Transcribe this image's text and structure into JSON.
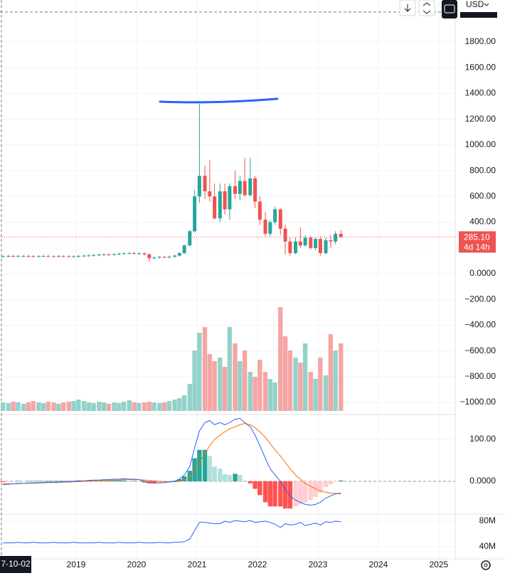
{
  "chart_data": {
    "type": "candlestick",
    "currency": "USD",
    "crosshair_date": "7-10-02",
    "last_price": {
      "value": 285.1,
      "label": "285.10"
    },
    "countdown": "4d 14h",
    "colors": {
      "up": "#26a69a",
      "down": "#ef5350",
      "volume_up": "#93d2ca",
      "volume_down": "#f5a6a4"
    },
    "xlim": [
      2017.741,
      2025.271
    ],
    "xticks": [
      2019,
      2020,
      2021,
      2022,
      2023,
      2024,
      2025
    ],
    "ylim": [
      2126,
      -1077
    ],
    "yticks": [
      {
        "value": 1800,
        "label": "1800.00"
      },
      {
        "value": 1600,
        "label": "1600.00"
      },
      {
        "value": 1400,
        "label": "1400.00"
      },
      {
        "value": 1200,
        "label": "1200.00"
      },
      {
        "value": 1000,
        "label": "1000.00"
      },
      {
        "value": 800,
        "label": "800.00"
      },
      {
        "value": 600,
        "label": "600.00"
      },
      {
        "value": 400,
        "label": "400.00"
      },
      {
        "value": 200,
        "label": "200.00"
      },
      {
        "value": 0,
        "label": "0.0000"
      },
      {
        "value": -200,
        "label": "−200.00"
      },
      {
        "value": -400,
        "label": "−400.00"
      },
      {
        "value": -600,
        "label": "−600.00"
      },
      {
        "value": -800,
        "label": "−800.00"
      },
      {
        "value": -1000,
        "label": "−1000.00"
      }
    ],
    "volume_lim": [
      0,
      200
    ],
    "x": [
      2017.79,
      2017.88,
      2017.96,
      2018.04,
      2018.13,
      2018.21,
      2018.29,
      2018.38,
      2018.46,
      2018.54,
      2018.63,
      2018.71,
      2018.79,
      2018.88,
      2018.96,
      2019.04,
      2019.13,
      2019.21,
      2019.29,
      2019.38,
      2019.46,
      2019.54,
      2019.63,
      2019.71,
      2019.79,
      2019.88,
      2019.96,
      2020.04,
      2020.13,
      2020.21,
      2020.29,
      2020.38,
      2020.46,
      2020.54,
      2020.63,
      2020.71,
      2020.79,
      2020.88,
      2020.96,
      2021.04,
      2021.13,
      2021.21,
      2021.29,
      2021.38,
      2021.46,
      2021.54,
      2021.63,
      2021.71,
      2021.79,
      2021.88,
      2021.96,
      2022.04,
      2022.13,
      2022.21,
      2022.29,
      2022.38,
      2022.46,
      2022.54,
      2022.63,
      2022.71,
      2022.79,
      2022.88,
      2022.96,
      2023.04,
      2023.13,
      2023.21,
      2023.29,
      2023.38
    ],
    "ohlc": [
      [
        133,
        143,
        125,
        135
      ],
      [
        135,
        146,
        127,
        138
      ],
      [
        138,
        146,
        128,
        136
      ],
      [
        136,
        145,
        128,
        137
      ],
      [
        137,
        146,
        129,
        138
      ],
      [
        138,
        146,
        128,
        136
      ],
      [
        136,
        144,
        127,
        135
      ],
      [
        135,
        145,
        127,
        137
      ],
      [
        137,
        146,
        129,
        138
      ],
      [
        138,
        146,
        128,
        136
      ],
      [
        136,
        144,
        127,
        135
      ],
      [
        135,
        145,
        127,
        137
      ],
      [
        137,
        145,
        128,
        136
      ],
      [
        136,
        144,
        126,
        134
      ],
      [
        134,
        143,
        126,
        135
      ],
      [
        135,
        146,
        127,
        138
      ],
      [
        138,
        148,
        130,
        140
      ],
      [
        140,
        150,
        132,
        142
      ],
      [
        142,
        153,
        134,
        145
      ],
      [
        145,
        156,
        137,
        148
      ],
      [
        148,
        158,
        140,
        150
      ],
      [
        150,
        158,
        140,
        148
      ],
      [
        148,
        160,
        140,
        152
      ],
      [
        152,
        163,
        144,
        155
      ],
      [
        155,
        166,
        147,
        158
      ],
      [
        158,
        168,
        150,
        160
      ],
      [
        160,
        168,
        148,
        156
      ],
      [
        156,
        166,
        148,
        158
      ],
      [
        158,
        166,
        142,
        150
      ],
      [
        150,
        158,
        95,
        120
      ],
      [
        120,
        133,
        112,
        125
      ],
      [
        125,
        138,
        117,
        130
      ],
      [
        130,
        138,
        120,
        128
      ],
      [
        128,
        140,
        120,
        132
      ],
      [
        132,
        148,
        124,
        140
      ],
      [
        140,
        168,
        132,
        160
      ],
      [
        160,
        228,
        152,
        220
      ],
      [
        220,
        340,
        212,
        330
      ],
      [
        330,
        650,
        320,
        600
      ],
      [
        600,
        1320,
        550,
        760
      ],
      [
        760,
        840,
        580,
        640
      ],
      [
        640,
        880,
        560,
        600
      ],
      [
        600,
        700,
        420,
        430
      ],
      [
        430,
        700,
        400,
        640
      ],
      [
        640,
        700,
        460,
        500
      ],
      [
        500,
        700,
        420,
        680
      ],
      [
        680,
        800,
        580,
        620
      ],
      [
        620,
        760,
        570,
        720
      ],
      [
        720,
        900,
        600,
        610
      ],
      [
        610,
        900,
        600,
        740
      ],
      [
        740,
        760,
        510,
        560
      ],
      [
        560,
        600,
        380,
        420
      ],
      [
        420,
        480,
        290,
        310
      ],
      [
        310,
        420,
        290,
        400
      ],
      [
        400,
        520,
        380,
        500
      ],
      [
        500,
        510,
        300,
        350
      ],
      [
        350,
        380,
        150,
        250
      ],
      [
        250,
        280,
        140,
        160
      ],
      [
        160,
        280,
        150,
        250
      ],
      [
        250,
        360,
        200,
        220
      ],
      [
        220,
        300,
        210,
        280
      ],
      [
        280,
        290,
        190,
        200
      ],
      [
        200,
        280,
        180,
        270
      ],
      [
        270,
        290,
        140,
        160
      ],
      [
        160,
        280,
        150,
        260
      ],
      [
        260,
        300,
        200,
        250
      ],
      [
        250,
        330,
        230,
        310
      ],
      [
        310,
        340,
        280,
        285.1
      ]
    ],
    "volume": [
      12,
      11,
      13,
      12,
      10,
      12,
      14,
      12,
      11,
      13,
      12,
      10,
      12,
      13,
      14,
      16,
      14,
      12,
      11,
      13,
      12,
      10,
      12,
      11,
      13,
      15,
      12,
      11,
      12,
      13,
      12,
      11,
      12,
      14,
      16,
      18,
      22,
      38,
      85,
      110,
      118,
      80,
      70,
      75,
      62,
      118,
      95,
      70,
      85,
      55,
      48,
      72,
      55,
      45,
      40,
      146,
      105,
      85,
      75,
      68,
      95,
      55,
      45,
      75,
      50,
      108,
      85,
      95
    ],
    "macd": {
      "type": "macd",
      "ylim": [
        156,
        -73
      ],
      "yticks": [
        {
          "value": 100,
          "label": "100.00"
        },
        {
          "value": 0,
          "label": "0.0000"
        }
      ],
      "colors": {
        "macd": "#2962ff",
        "signal": "#ff6d00",
        "pos_up": "#26a69a",
        "pos_down": "#b2dfdb",
        "neg_down": "#ff5252",
        "neg_up": "#ffcdd2"
      },
      "macd": [
        -8,
        -7,
        -6,
        -5,
        -5,
        -4,
        -4,
        -3,
        -3,
        -2,
        -2,
        -2,
        -1,
        -1,
        0,
        1,
        1,
        2,
        3,
        3,
        4,
        4,
        5,
        5,
        6,
        5,
        5,
        4,
        0,
        -3,
        -4,
        -4,
        -3,
        -2,
        0,
        5,
        15,
        35,
        80,
        120,
        140,
        145,
        135,
        140,
        135,
        140,
        148,
        150,
        140,
        130,
        110,
        85,
        55,
        30,
        15,
        0,
        -20,
        -35,
        -45,
        -50,
        -55,
        -57,
        -55,
        -50,
        -40,
        -35,
        -30,
        -28
      ],
      "signal": [
        -6,
        -6,
        -6,
        -6,
        -5,
        -5,
        -5,
        -4,
        -4,
        -3,
        -3,
        -3,
        -2,
        -2,
        -1,
        -1,
        0,
        0,
        1,
        1,
        2,
        2,
        3,
        3,
        4,
        4,
        4,
        4,
        3,
        2,
        1,
        0,
        -1,
        -1,
        -1,
        0,
        3,
        10,
        25,
        45,
        65,
        85,
        100,
        110,
        118,
        125,
        130,
        135,
        138,
        135,
        128,
        118,
        105,
        90,
        75,
        60,
        45,
        30,
        15,
        5,
        -5,
        -12,
        -18,
        -23,
        -26,
        -28,
        -29,
        -30
      ],
      "histogram": [
        -2,
        -1,
        0,
        1,
        0,
        1,
        1,
        1,
        1,
        1,
        1,
        1,
        1,
        1,
        1,
        2,
        1,
        2,
        2,
        2,
        2,
        2,
        2,
        2,
        2,
        1,
        1,
        0,
        -3,
        -5,
        -5,
        -4,
        -2,
        -1,
        1,
        5,
        12,
        25,
        55,
        75,
        75,
        60,
        35,
        30,
        17,
        15,
        18,
        15,
        2,
        -5,
        -18,
        -33,
        -50,
        -60,
        -60,
        -60,
        -65,
        -65,
        -60,
        -55,
        -50,
        -45,
        -37,
        -27,
        -14,
        -7,
        -1,
        2
      ]
    },
    "indicator": {
      "type": "line",
      "color": "#2962ff",
      "ylim": [
        88.9,
        22.2
      ],
      "yticks": [
        {
          "value": 80,
          "label": "80M"
        },
        {
          "value": 40,
          "label": "40M"
        }
      ],
      "values": [
        46,
        46,
        46,
        47,
        46,
        46,
        47,
        46,
        46,
        46,
        47,
        46,
        46,
        46,
        47,
        46,
        46,
        46,
        46,
        47,
        46,
        46,
        46,
        47,
        46,
        46,
        46,
        47,
        46,
        46,
        46,
        47,
        46,
        46,
        47,
        47,
        48,
        52,
        65,
        78,
        78,
        77,
        76,
        76,
        80,
        78,
        81,
        80,
        79,
        81,
        78,
        79,
        80,
        78,
        75,
        70,
        76,
        74,
        75,
        78,
        73,
        75,
        77,
        74,
        79,
        78,
        80,
        79
      ]
    }
  }
}
